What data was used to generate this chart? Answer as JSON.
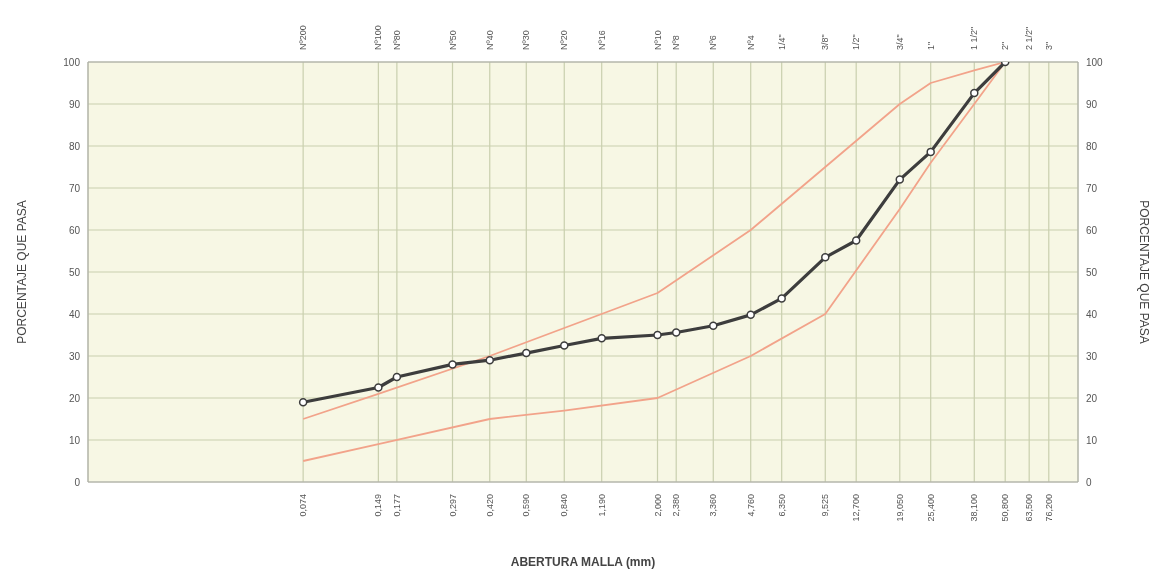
{
  "chart_data": {
    "type": "line",
    "xlabel": "ABERTURA MALLA (mm)",
    "ylabel": "PORCENTAJE QUE PASA",
    "y2label": "PORCENTAJE QUE PASA",
    "log": "x",
    "grid": true,
    "line_style": "solid",
    "xlim": [
      0.01,
      100
    ],
    "xticks": [
      {
        "value": 0.074,
        "label": "0,074"
      },
      {
        "value": 0.149,
        "label": "0,149"
      },
      {
        "value": 0.177,
        "label": "0,177"
      },
      {
        "value": 0.297,
        "label": "0,297"
      },
      {
        "value": 0.42,
        "label": "0,420"
      },
      {
        "value": 0.59,
        "label": "0,590"
      },
      {
        "value": 0.84,
        "label": "0,840"
      },
      {
        "value": 1.19,
        "label": "1,190"
      },
      {
        "value": 2,
        "label": "2,000"
      },
      {
        "value": 2.38,
        "label": "2,380"
      },
      {
        "value": 3.36,
        "label": "3,360"
      },
      {
        "value": 4.76,
        "label": "4,760"
      },
      {
        "value": 6.35,
        "label": "6,350"
      },
      {
        "value": 9.525,
        "label": "9,525"
      },
      {
        "value": 12.7,
        "label": "12,700"
      },
      {
        "value": 19.05,
        "label": "19,050"
      },
      {
        "value": 25.4,
        "label": "25,400"
      },
      {
        "value": 38.1,
        "label": "38,100"
      },
      {
        "value": 50.8,
        "label": "50,800"
      },
      {
        "value": 63.5,
        "label": "63,500"
      },
      {
        "value": 76.2,
        "label": "76,200"
      }
    ],
    "annotations": [
      "Nº200",
      "Nº100",
      "Nº80",
      "Nº50",
      "Nº40",
      "Nº30",
      "Nº20",
      "Nº16",
      "Nº10",
      "Nº8",
      "Nº6",
      "Nº4",
      "1/4\"",
      "3/8\"",
      "1/2\"",
      "3/4\"",
      "1\"",
      "1 1/2\"",
      "2\"",
      "2 1/2\"",
      "3\""
    ],
    "ylim": [
      0,
      100
    ],
    "yticks": [
      0,
      10,
      20,
      30,
      40,
      50,
      60,
      70,
      80,
      90,
      100
    ],
    "y2lim": [
      0,
      100
    ],
    "y2ticks": [
      0,
      10,
      20,
      30,
      40,
      50,
      60,
      70,
      80,
      90,
      100
    ],
    "series": [
      {
        "color": "#f2a38a",
        "marker": "none",
        "x": [
          0.074,
          0.149,
          0.42,
          2,
          4.76,
          9.525,
          19.05,
          25.4,
          38.1,
          50.8
        ],
        "values": [
          15,
          21,
          30,
          45,
          60,
          75,
          90,
          95,
          98,
          100
        ]
      },
      {
        "color": "#f2a38a",
        "marker": "none",
        "x": [
          0.074,
          0.149,
          0.42,
          0.84,
          2,
          4.76,
          9.525,
          19.05,
          25.4,
          38.1,
          50.8
        ],
        "values": [
          5,
          9,
          15,
          17,
          20,
          30,
          40,
          65,
          76,
          90,
          100
        ]
      },
      {
        "color": "#3d3d3d",
        "marker": "circle",
        "x": [
          0.074,
          0.149,
          0.177,
          0.297,
          0.42,
          0.59,
          0.84,
          1.19,
          2,
          2.38,
          3.36,
          4.76,
          6.35,
          9.525,
          12.7,
          19.05,
          25.4,
          38.1,
          50.8
        ],
        "values": [
          19,
          22.5,
          25,
          28,
          29,
          30.7,
          32.5,
          34.2,
          35,
          35.6,
          37.2,
          39.8,
          43.7,
          53.5,
          57.5,
          72,
          78.6,
          92.6,
          100
        ]
      }
    ]
  }
}
